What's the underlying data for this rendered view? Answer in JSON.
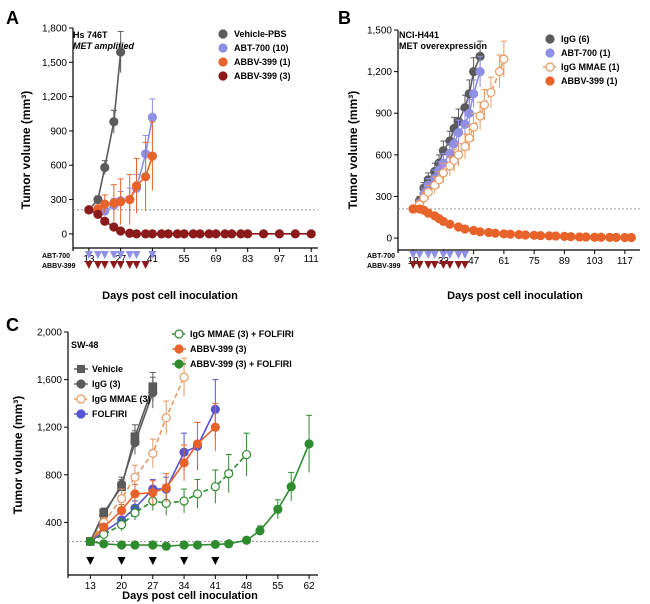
{
  "colors": {
    "vehicle": "#5b5b5b",
    "abt700": "#8f8fe6",
    "abbv399_1": "#e8632a",
    "abbv399_3": "#8b1a1a",
    "igg": "#5b5b5b",
    "iggmmae": "#e89a62",
    "folfiri": "#5454d4",
    "combo": "#2e8b2e",
    "threshold": "#888888"
  },
  "chart_data": [
    {
      "id": "A",
      "panel_label": "A",
      "type": "line",
      "model": "Hs 746T",
      "model_note": "MET amplified",
      "xlabel": "Days post cell inoculation",
      "ylabel": "Tumor volume (mm³)",
      "xlim": [
        6,
        114
      ],
      "ylim": [
        -80,
        1800
      ],
      "xticks": [
        "13",
        "27",
        "41",
        "55",
        "69",
        "83",
        "97",
        "111"
      ],
      "yticks": [
        "0",
        "300",
        "600",
        "900",
        "1,200",
        "1,500",
        "1,800"
      ],
      "threshold": 210,
      "legend_position": "top-right",
      "dosing": [
        {
          "label": "ABT-700",
          "color_key": "abt700",
          "days": [
            13,
            17,
            20,
            24,
            27,
            31,
            34,
            41
          ]
        },
        {
          "label": "ABBV-399",
          "color_key": "abbv399_3",
          "days": [
            13,
            17,
            20,
            24,
            27,
            31,
            34,
            38
          ]
        }
      ],
      "series": [
        {
          "name": "Vehicle-PBS",
          "color_key": "vehicle",
          "style": "solid",
          "open": false,
          "x": [
            13,
            17,
            20,
            24,
            27
          ],
          "y": [
            210,
            300,
            580,
            980,
            1590
          ],
          "err": [
            10,
            30,
            60,
            100,
            180
          ]
        },
        {
          "name": "ABT-700 (10)",
          "color_key": "abt700",
          "style": "solid",
          "open": false,
          "x": [
            13,
            17,
            20,
            24,
            27,
            31,
            34,
            38,
            41
          ],
          "y": [
            210,
            180,
            200,
            250,
            290,
            300,
            400,
            700,
            1020
          ],
          "err": [
            10,
            30,
            40,
            60,
            80,
            100,
            120,
            160,
            160
          ]
        },
        {
          "name": "ABBV-399 (1)",
          "color_key": "abbv399_1",
          "style": "solid",
          "open": false,
          "x": [
            13,
            17,
            20,
            24,
            27,
            31,
            34,
            38,
            41
          ],
          "y": [
            210,
            220,
            260,
            270,
            280,
            300,
            420,
            500,
            680
          ],
          "err": [
            10,
            30,
            80,
            160,
            200,
            220,
            240,
            300,
            300
          ]
        },
        {
          "name": "ABBV-399 (3)",
          "color_key": "abbv399_3",
          "style": "solid",
          "open": false,
          "x": [
            13,
            17,
            20,
            24,
            27,
            31,
            34,
            38,
            41,
            45,
            48,
            52,
            55,
            59,
            62,
            66,
            69,
            73,
            76,
            80,
            83,
            90,
            97,
            104,
            111
          ],
          "y": [
            210,
            170,
            110,
            60,
            25,
            5,
            0,
            0,
            0,
            0,
            0,
            0,
            0,
            0,
            0,
            0,
            0,
            0,
            0,
            0,
            0,
            0,
            0,
            0,
            0
          ],
          "err": [
            10,
            20,
            20,
            15,
            10,
            5,
            0,
            0,
            0,
            0,
            0,
            0,
            0,
            0,
            0,
            0,
            0,
            0,
            0,
            0,
            0,
            0,
            0,
            0,
            0
          ]
        }
      ]
    },
    {
      "id": "B",
      "panel_label": "B",
      "type": "line",
      "model": "NCI-H441",
      "model_note": "MET overexpression",
      "xlabel": "Days post cell inoculation",
      "ylabel": "Tumor volume (mm³)",
      "xlim": [
        12,
        124
      ],
      "ylim": [
        -50,
        1500
      ],
      "xticks": [
        "19",
        "33",
        "47",
        "61",
        "75",
        "89",
        "103",
        "117"
      ],
      "yticks": [
        "0",
        "300",
        "600",
        "900",
        "1,200",
        "1,500"
      ],
      "threshold": 210,
      "legend_position": "top-right",
      "dosing": [
        {
          "label": "ABT-700",
          "color_key": "abt700",
          "days": [
            19,
            22,
            26,
            29,
            33,
            36,
            40,
            43
          ]
        },
        {
          "label": "ABBV-399",
          "color_key": "abbv399_3",
          "days": [
            19,
            22,
            26,
            29,
            33,
            36,
            40,
            43
          ]
        }
      ],
      "series": [
        {
          "name": "IgG (6)",
          "color_key": "igg",
          "style": "solid",
          "open": false,
          "x": [
            19,
            22,
            24,
            26,
            29,
            31,
            33,
            36,
            38,
            40,
            43,
            45,
            47,
            50
          ],
          "y": [
            210,
            270,
            360,
            420,
            480,
            540,
            630,
            700,
            790,
            840,
            940,
            1040,
            1200,
            1310
          ],
          "err": [
            15,
            30,
            40,
            50,
            60,
            60,
            70,
            70,
            80,
            90,
            90,
            100,
            100,
            110
          ]
        },
        {
          "name": "ABT-700 (1)",
          "color_key": "abt700",
          "style": "solid",
          "open": false,
          "x": [
            19,
            22,
            24,
            26,
            29,
            31,
            33,
            36,
            38,
            40,
            43,
            45,
            47,
            50
          ],
          "y": [
            210,
            250,
            320,
            380,
            430,
            490,
            540,
            610,
            680,
            760,
            820,
            900,
            1040,
            1200
          ],
          "err": [
            15,
            30,
            40,
            50,
            60,
            60,
            70,
            70,
            80,
            90,
            90,
            100,
            100,
            110
          ]
        },
        {
          "name": "IgG MMAE (1)",
          "color_key": "iggmmae",
          "style": "dashed",
          "open": true,
          "x": [
            19,
            22,
            24,
            26,
            29,
            31,
            33,
            36,
            38,
            40,
            43,
            45,
            47,
            50,
            52,
            55,
            59,
            61
          ],
          "y": [
            210,
            240,
            290,
            330,
            380,
            420,
            470,
            520,
            560,
            600,
            660,
            720,
            800,
            880,
            960,
            1050,
            1200,
            1290
          ],
          "err": [
            15,
            30,
            40,
            50,
            60,
            60,
            70,
            70,
            80,
            80,
            90,
            90,
            100,
            100,
            110,
            110,
            120,
            130
          ]
        },
        {
          "name": "ABBV-399 (1)",
          "color_key": "abbv399_1",
          "style": "solid",
          "open": false,
          "x": [
            19,
            22,
            24,
            26,
            29,
            31,
            33,
            36,
            40,
            43,
            47,
            50,
            54,
            57,
            61,
            64,
            68,
            71,
            75,
            78,
            82,
            85,
            89,
            92,
            96,
            99,
            103,
            106,
            110,
            113,
            117,
            120
          ],
          "y": [
            210,
            210,
            200,
            180,
            160,
            140,
            120,
            100,
            80,
            65,
            55,
            45,
            40,
            35,
            30,
            28,
            25,
            22,
            20,
            18,
            16,
            15,
            12,
            10,
            8,
            8,
            6,
            6,
            5,
            5,
            4,
            4
          ],
          "err": [
            10,
            15,
            15,
            15,
            12,
            12,
            10,
            10,
            8,
            8,
            6,
            6,
            5,
            5,
            4,
            4,
            4,
            4,
            3,
            3,
            3,
            3,
            3,
            3,
            3,
            3,
            3,
            3,
            3,
            3,
            3,
            3
          ]
        }
      ]
    },
    {
      "id": "C",
      "panel_label": "C",
      "type": "line",
      "model": "SW-48",
      "model_note": "",
      "xlabel": "Days post cell inoculation",
      "ylabel": "Tumor volume (mm³)",
      "xlim": [
        8,
        64
      ],
      "ylim": [
        0,
        2000
      ],
      "xticks": [
        "13",
        "20",
        "27",
        "34",
        "41",
        "48",
        "55",
        "62"
      ],
      "yticks": [
        "400",
        "800",
        "1,200",
        "1,600",
        "2,000"
      ],
      "threshold": 240,
      "legend_position": "top-left and top-right",
      "dosing": [
        {
          "label": "",
          "color_key": "vehicle",
          "days": [
            13,
            20,
            27,
            34,
            41
          ]
        }
      ],
      "series": [
        {
          "name": "Vehicle",
          "color_key": "vehicle",
          "style": "solid",
          "open": false,
          "marker": "square",
          "x": [
            13,
            16,
            20,
            23,
            27
          ],
          "y": [
            240,
            480,
            700,
            1120,
            1540
          ],
          "err": [
            10,
            40,
            60,
            100,
            120
          ]
        },
        {
          "name": "IgG (3)",
          "color_key": "igg",
          "style": "solid",
          "open": false,
          "x": [
            13,
            16,
            20,
            23,
            27
          ],
          "y": [
            240,
            460,
            720,
            1070,
            1490
          ],
          "err": [
            10,
            40,
            60,
            100,
            130
          ]
        },
        {
          "name": "IgG MMAE (3)",
          "color_key": "iggmmae",
          "style": "dashed",
          "open": true,
          "x": [
            13,
            16,
            20,
            23,
            27,
            30,
            34
          ],
          "y": [
            240,
            400,
            600,
            780,
            980,
            1280,
            1620
          ],
          "err": [
            10,
            40,
            80,
            100,
            120,
            140,
            160
          ]
        },
        {
          "name": "FOLFIRI",
          "color_key": "folfiri",
          "style": "solid",
          "open": false,
          "x": [
            13,
            16,
            20,
            23,
            27,
            30,
            34,
            37,
            41
          ],
          "y": [
            240,
            320,
            420,
            520,
            680,
            680,
            990,
            1040,
            1350
          ],
          "err": [
            10,
            30,
            50,
            60,
            80,
            100,
            160,
            200,
            250
          ]
        },
        {
          "name": "IgG MMAE (3) + FOLFIRI",
          "color_key": "combo",
          "style": "dashed",
          "open": true,
          "x": [
            13,
            16,
            20,
            23,
            27,
            30,
            34,
            37,
            41,
            44,
            48
          ],
          "y": [
            240,
            300,
            380,
            480,
            580,
            560,
            580,
            640,
            700,
            810,
            970
          ],
          "err": [
            10,
            30,
            50,
            60,
            80,
            100,
            100,
            120,
            140,
            160,
            180
          ]
        },
        {
          "name": "ABBV-399 (3)",
          "color_key": "abbv399_1",
          "style": "solid",
          "open": false,
          "x": [
            13,
            16,
            20,
            23,
            27,
            30,
            34,
            37,
            41
          ],
          "y": [
            240,
            360,
            500,
            640,
            650,
            690,
            900,
            1060,
            1200
          ],
          "err": [
            10,
            30,
            50,
            80,
            100,
            120,
            150,
            180,
            200
          ]
        },
        {
          "name": "ABBV-399 (3) + FOLFIRI",
          "color_key": "combo",
          "style": "solid",
          "open": false,
          "x": [
            13,
            16,
            20,
            23,
            27,
            30,
            34,
            37,
            41,
            44,
            48,
            51,
            55,
            58,
            62
          ],
          "y": [
            240,
            220,
            210,
            210,
            210,
            200,
            210,
            210,
            215,
            220,
            250,
            330,
            510,
            700,
            1060
          ],
          "err": [
            10,
            15,
            15,
            15,
            15,
            15,
            15,
            15,
            15,
            15,
            20,
            40,
            80,
            120,
            240
          ]
        }
      ]
    }
  ]
}
